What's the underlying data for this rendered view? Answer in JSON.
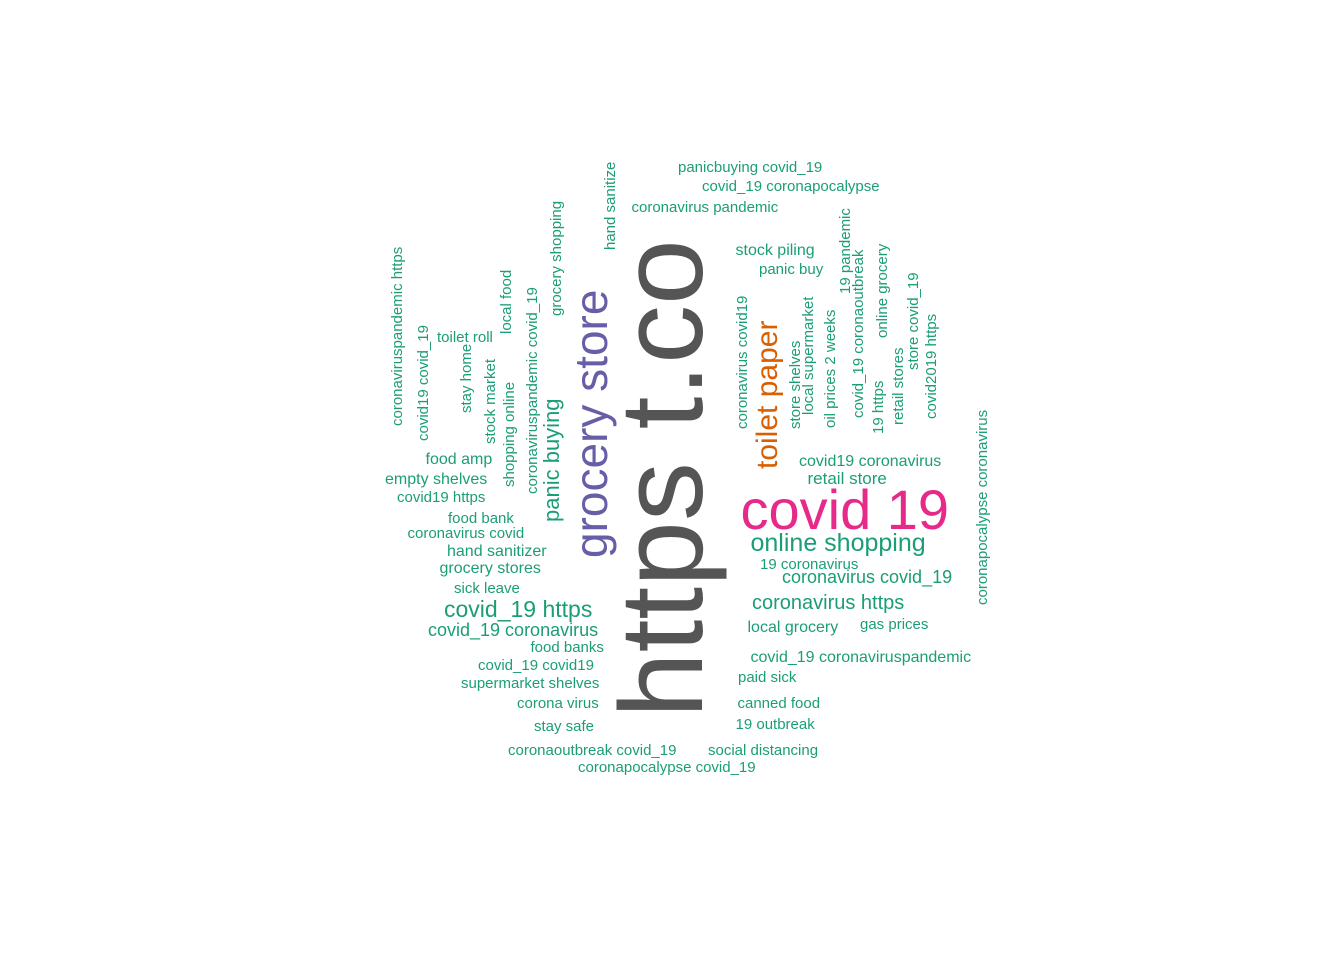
{
  "colors": {
    "green": "#1b9e77",
    "gray": "#555555",
    "purple": "#665fa8",
    "orange": "#d95f02",
    "magenta": "#e7298a"
  },
  "words": [
    {
      "text": "https t.co",
      "color": "gray"
    },
    {
      "text": "covid 19",
      "color": "magenta"
    },
    {
      "text": "grocery store",
      "color": "purple"
    },
    {
      "text": "toilet paper",
      "color": "orange"
    },
    {
      "text": "online shopping",
      "color": "green"
    },
    {
      "text": "panic buying",
      "color": "green"
    },
    {
      "text": "covid_19 https",
      "color": "green"
    },
    {
      "text": "coronavirus https",
      "color": "green"
    },
    {
      "text": "covid_19 coronavirus",
      "color": "green"
    },
    {
      "text": "coronavirus covid_19",
      "color": "green"
    },
    {
      "text": "covid19 coronavirus",
      "color": "green"
    },
    {
      "text": "retail store",
      "color": "green"
    },
    {
      "text": "local grocery",
      "color": "green"
    },
    {
      "text": "hand sanitizer",
      "color": "green"
    },
    {
      "text": "grocery stores",
      "color": "green"
    },
    {
      "text": "covid_19 coronaviruspandemic",
      "color": "green"
    },
    {
      "text": "empty shelves",
      "color": "green"
    },
    {
      "text": "food amp",
      "color": "green"
    },
    {
      "text": "food bank",
      "color": "green"
    },
    {
      "text": "coronavirus covid",
      "color": "green"
    },
    {
      "text": "covid19 https",
      "color": "green"
    },
    {
      "text": "sick leave",
      "color": "green"
    },
    {
      "text": "food banks",
      "color": "green"
    },
    {
      "text": "covid_19 covid19",
      "color": "green"
    },
    {
      "text": "supermarket shelves",
      "color": "green"
    },
    {
      "text": "corona virus",
      "color": "green"
    },
    {
      "text": "stay safe",
      "color": "green"
    },
    {
      "text": "coronaoutbreak covid_19",
      "color": "green"
    },
    {
      "text": "social distancing",
      "color": "green"
    },
    {
      "text": "coronapocalypse covid_19",
      "color": "green"
    },
    {
      "text": "canned food",
      "color": "green"
    },
    {
      "text": "19 outbreak",
      "color": "green"
    },
    {
      "text": "paid sick",
      "color": "green"
    },
    {
      "text": "gas prices",
      "color": "green"
    },
    {
      "text": "19 coronavirus",
      "color": "green"
    },
    {
      "text": "panicbuying covid_19",
      "color": "green"
    },
    {
      "text": "covid_19 coronapocalypse",
      "color": "green"
    },
    {
      "text": "coronavirus pandemic",
      "color": "green"
    },
    {
      "text": "stock piling",
      "color": "green"
    },
    {
      "text": "panic buy",
      "color": "green"
    },
    {
      "text": "toilet roll",
      "color": "green"
    },
    {
      "text": "coronaviruspandemic https",
      "color": "green"
    },
    {
      "text": "covid19 covid_19",
      "color": "green"
    },
    {
      "text": "stay home",
      "color": "green"
    },
    {
      "text": "stock market",
      "color": "green"
    },
    {
      "text": "shopping online",
      "color": "green"
    },
    {
      "text": "local food",
      "color": "green"
    },
    {
      "text": "coronaviruspandemic covid_19",
      "color": "green"
    },
    {
      "text": "grocery shopping",
      "color": "green"
    },
    {
      "text": "hand sanitize",
      "color": "green"
    },
    {
      "text": "coronavirus covid19",
      "color": "green"
    },
    {
      "text": "store shelves",
      "color": "green"
    },
    {
      "text": "local supermarket",
      "color": "green"
    },
    {
      "text": "oil prices 2 weeks",
      "color": "green"
    },
    {
      "text": "19 pandemic",
      "color": "green"
    },
    {
      "text": "covid_19 coronaoutbreak",
      "color": "green"
    },
    {
      "text": "online grocery",
      "color": "green"
    },
    {
      "text": "19 https",
      "color": "green"
    },
    {
      "text": "retail stores",
      "color": "green"
    },
    {
      "text": "store covid_19",
      "color": "green"
    },
    {
      "text": "covid2019 https",
      "color": "green"
    },
    {
      "text": "coronapocalypse coronavirus",
      "color": "green"
    }
  ]
}
